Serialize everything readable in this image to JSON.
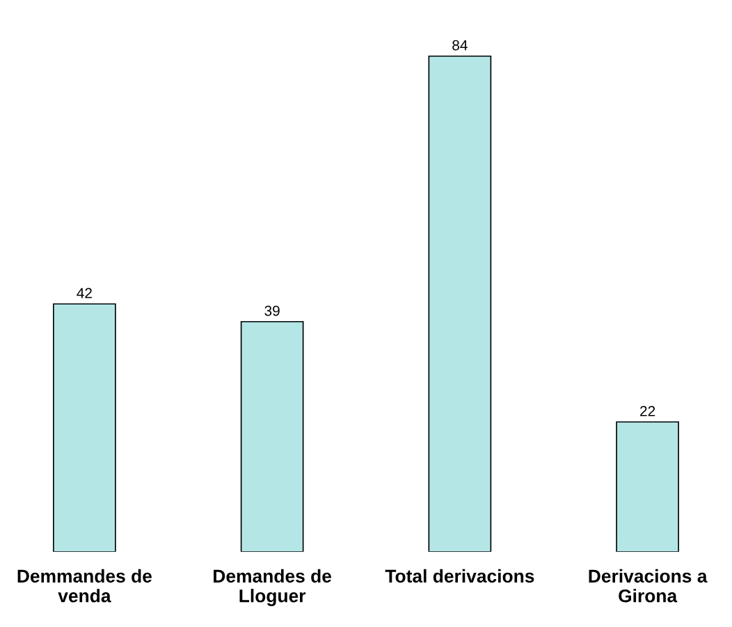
{
  "chart_data": {
    "type": "bar",
    "categories": [
      "Demmandes de\nvenda",
      "Demandes de\nLloguer",
      "Total derivacions",
      "Derivacions a\nGirona"
    ],
    "values": [
      42,
      39,
      84,
      22
    ],
    "color": "#b4e6e6",
    "data_labels": true,
    "grid": false,
    "legend": false
  }
}
